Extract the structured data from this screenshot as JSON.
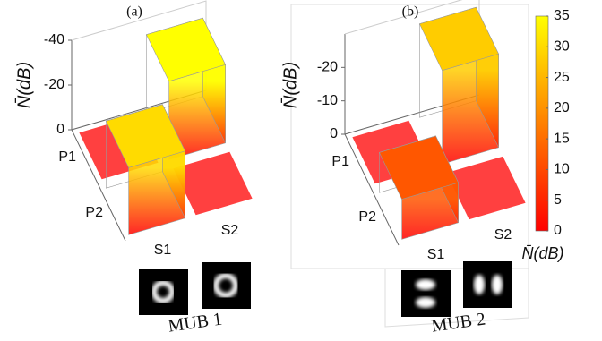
{
  "chart_data": [
    {
      "type": "bar3d",
      "title": "(a)",
      "zlabel": "N̄(dB)",
      "rows": [
        "P1",
        "P2"
      ],
      "columns": [
        "S1",
        "S2"
      ],
      "values": [
        [
          0,
          -35
        ],
        [
          -30,
          0
        ]
      ],
      "zlim": [
        0,
        -40
      ],
      "zticks": [
        0,
        -20,
        -40
      ],
      "caption": "MUB 1"
    },
    {
      "type": "bar3d",
      "title": "(b)",
      "zlabel": "N̄(dB)",
      "rows": [
        "P1",
        "P2"
      ],
      "columns": [
        "S1",
        "S2"
      ],
      "values": [
        [
          0,
          -28
        ],
        [
          -12,
          0
        ]
      ],
      "zlim": [
        0,
        -30
      ],
      "zticks": [
        0,
        -10,
        -20
      ],
      "caption": "MUB 2"
    }
  ],
  "colorbar": {
    "lim": [
      0,
      35
    ],
    "ticks": [
      0,
      5,
      10,
      15,
      20,
      25,
      30,
      35
    ],
    "label": "N̄(dB)"
  }
}
